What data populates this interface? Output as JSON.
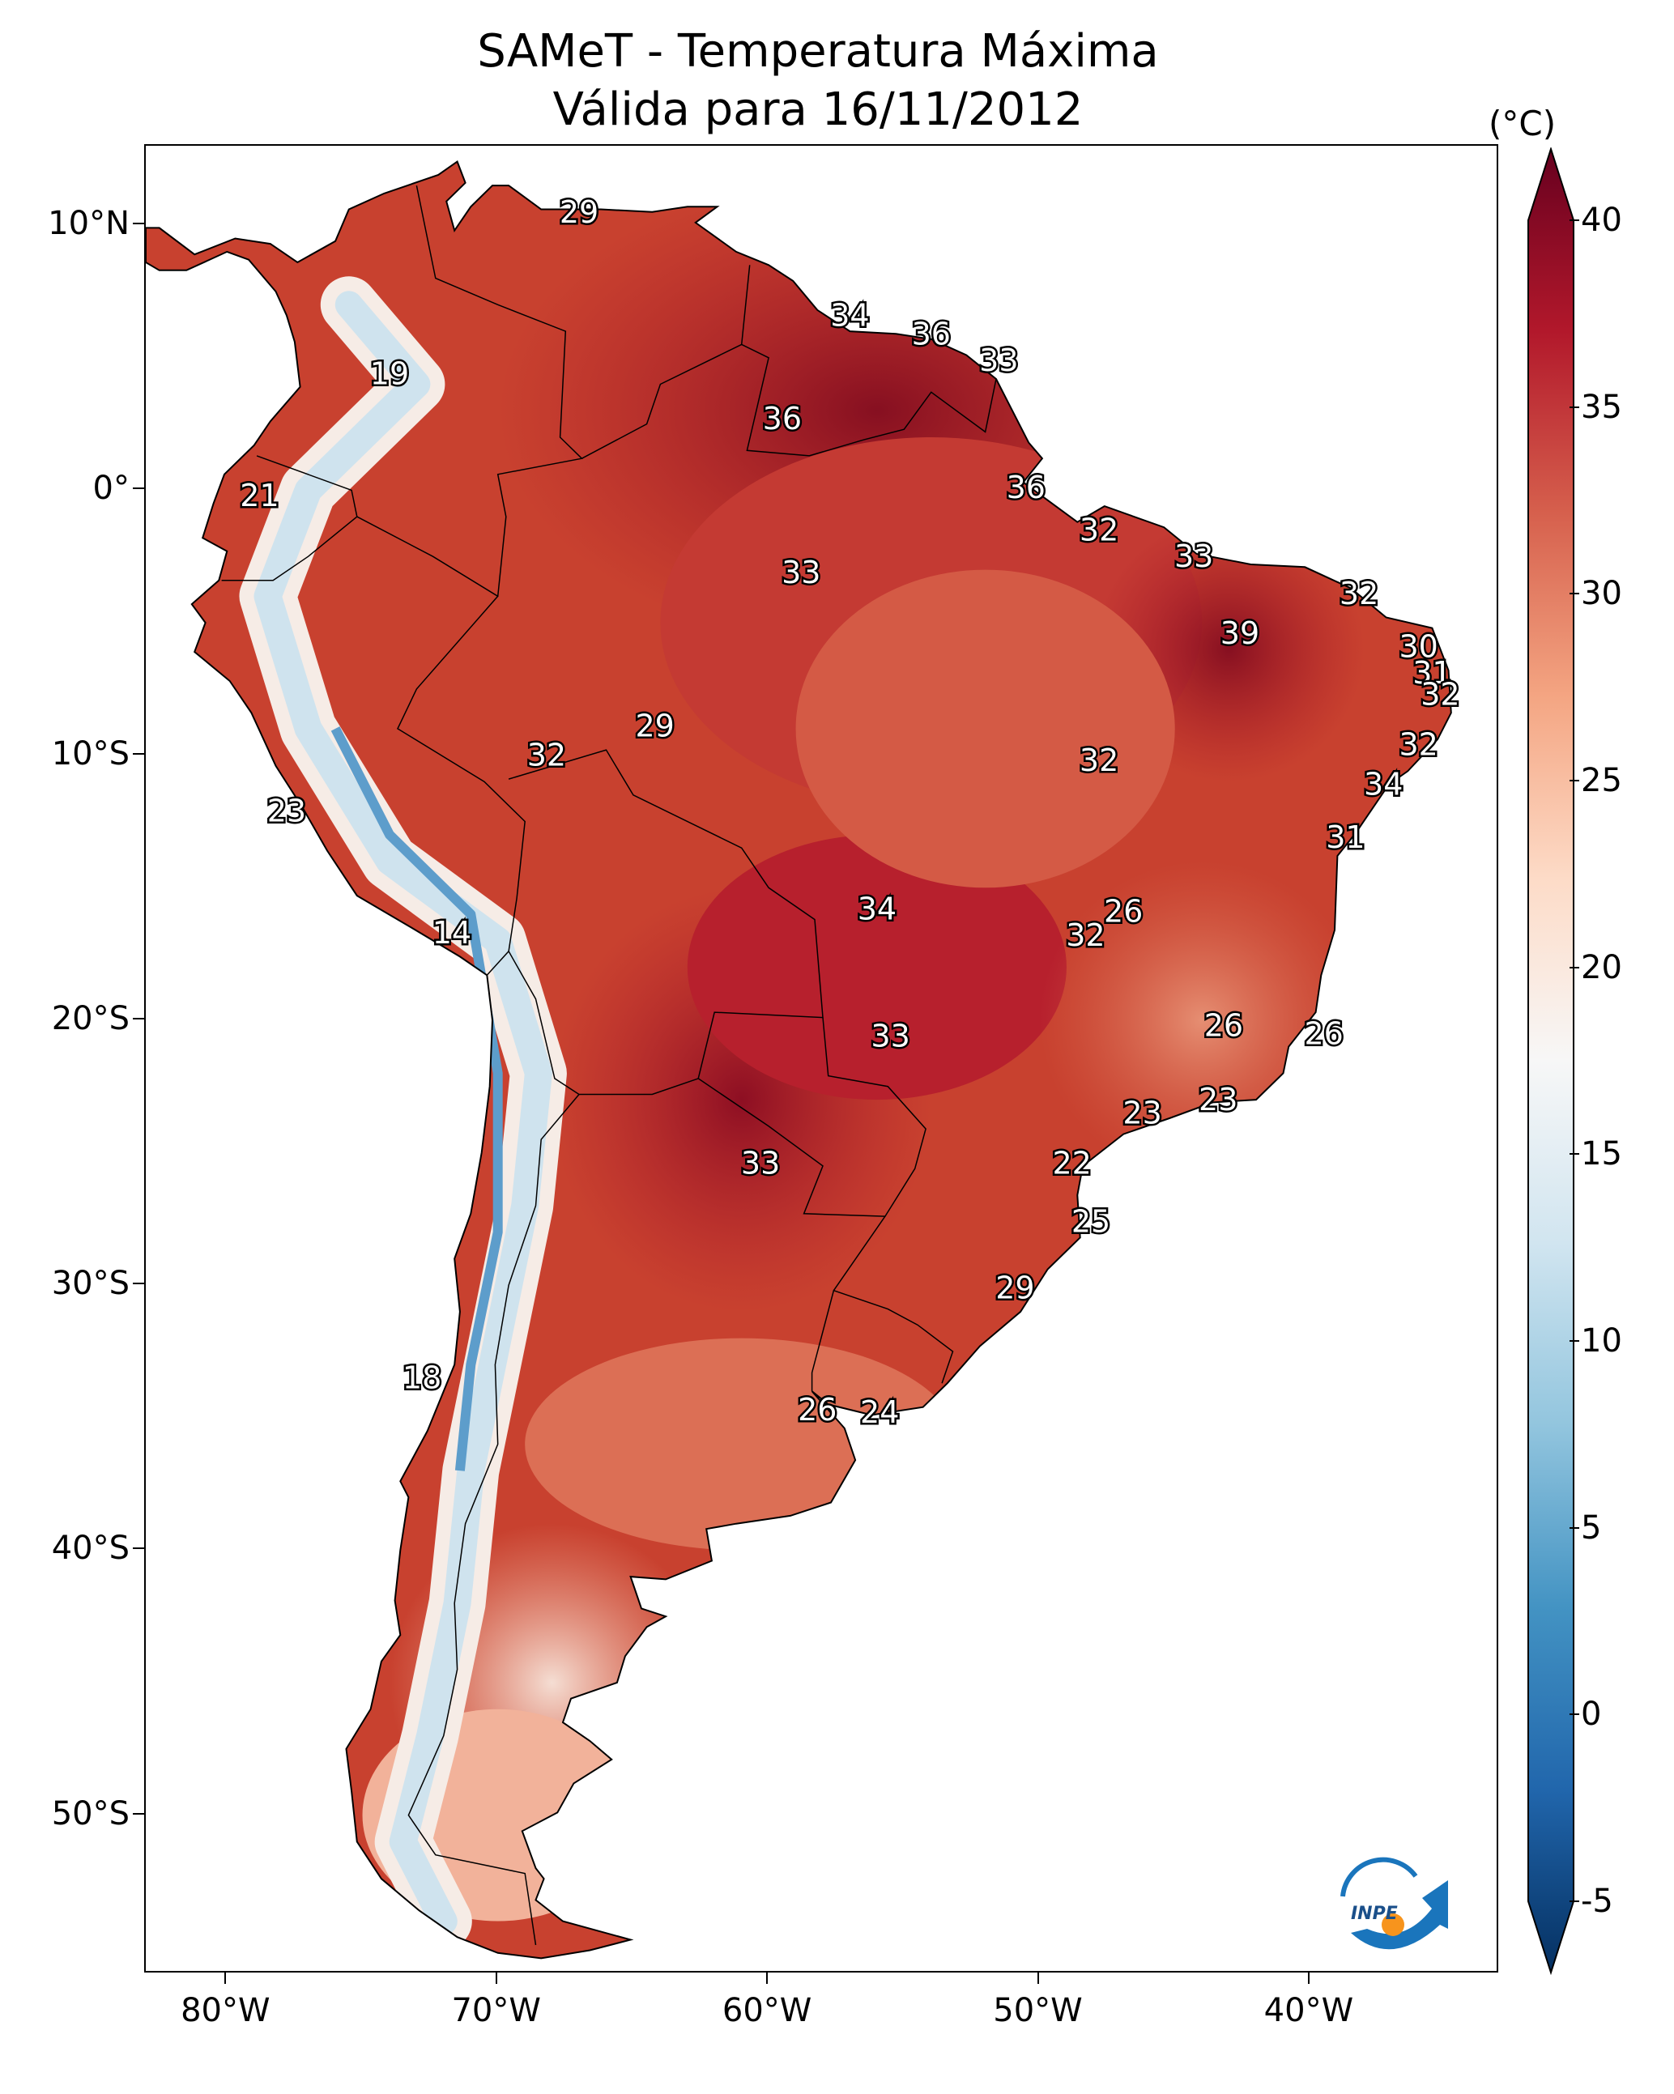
{
  "title": {
    "line1": "SAMeT - Temperatura Máxima",
    "line2": "Válida para 16/11/2012"
  },
  "map": {
    "type": "gridded temperature field",
    "region": "South America",
    "lon_range": [
      -83,
      -33
    ],
    "lat_range": [
      -56,
      13
    ],
    "colormap": "RdBu_r",
    "lat_ticks": [
      {
        "lat": 10,
        "label": "10°N"
      },
      {
        "lat": 0,
        "label": "0°"
      },
      {
        "lat": -10,
        "label": "10°S"
      },
      {
        "lat": -20,
        "label": "20°S"
      },
      {
        "lat": -30,
        "label": "30°S"
      },
      {
        "lat": -40,
        "label": "40°S"
      },
      {
        "lat": -50,
        "label": "50°S"
      }
    ],
    "lon_ticks": [
      {
        "lon": -80,
        "label": "80°W"
      },
      {
        "lon": -70,
        "label": "70°W"
      },
      {
        "lon": -60,
        "label": "60°W"
      },
      {
        "lon": -50,
        "label": "50°W"
      },
      {
        "lon": -40,
        "label": "40°W"
      }
    ],
    "value_labels": [
      {
        "lon": -67,
        "lat": 10.5,
        "value": "29"
      },
      {
        "lon": -57,
        "lat": 6.6,
        "value": "34"
      },
      {
        "lon": -54,
        "lat": 5.9,
        "value": "36"
      },
      {
        "lon": -51.5,
        "lat": 4.9,
        "value": "33"
      },
      {
        "lon": -74,
        "lat": 4.4,
        "value": "19"
      },
      {
        "lon": -59.5,
        "lat": 2.7,
        "value": "36"
      },
      {
        "lon": -50.5,
        "lat": 0.1,
        "value": "36"
      },
      {
        "lon": -78.8,
        "lat": -0.2,
        "value": "21"
      },
      {
        "lon": -47.8,
        "lat": -1.5,
        "value": "32"
      },
      {
        "lon": -58.8,
        "lat": -3.1,
        "value": "33"
      },
      {
        "lon": -44.3,
        "lat": -2.5,
        "value": "33"
      },
      {
        "lon": -38.2,
        "lat": -3.9,
        "value": "32"
      },
      {
        "lon": -42.6,
        "lat": -5.4,
        "value": "39"
      },
      {
        "lon": -36,
        "lat": -5.9,
        "value": "30"
      },
      {
        "lon": -35.5,
        "lat": -6.9,
        "value": "31"
      },
      {
        "lon": -35.2,
        "lat": -7.7,
        "value": "32"
      },
      {
        "lon": -64.2,
        "lat": -8.9,
        "value": "29"
      },
      {
        "lon": -68.2,
        "lat": -10,
        "value": "32"
      },
      {
        "lon": -47.8,
        "lat": -10.2,
        "value": "32"
      },
      {
        "lon": -36,
        "lat": -9.6,
        "value": "32"
      },
      {
        "lon": -37.3,
        "lat": -11.1,
        "value": "34"
      },
      {
        "lon": -77.8,
        "lat": -12.1,
        "value": "23"
      },
      {
        "lon": -38.7,
        "lat": -13.1,
        "value": "31"
      },
      {
        "lon": -56,
        "lat": -15.8,
        "value": "34"
      },
      {
        "lon": -46.9,
        "lat": -15.9,
        "value": "26"
      },
      {
        "lon": -48.3,
        "lat": -16.8,
        "value": "32"
      },
      {
        "lon": -71.7,
        "lat": -16.7,
        "value": "14"
      },
      {
        "lon": -43.2,
        "lat": -20.2,
        "value": "26"
      },
      {
        "lon": -55.5,
        "lat": -20.6,
        "value": "33"
      },
      {
        "lon": -39.5,
        "lat": -20.5,
        "value": "26"
      },
      {
        "lon": -43.4,
        "lat": -23,
        "value": "23"
      },
      {
        "lon": -46.2,
        "lat": -23.5,
        "value": "23"
      },
      {
        "lon": -60.3,
        "lat": -25.4,
        "value": "33"
      },
      {
        "lon": -48.8,
        "lat": -25.4,
        "value": "22"
      },
      {
        "lon": -48.1,
        "lat": -27.6,
        "value": "25"
      },
      {
        "lon": -50.9,
        "lat": -30.1,
        "value": "29"
      },
      {
        "lon": -72.8,
        "lat": -33.5,
        "value": "18"
      },
      {
        "lon": -58.2,
        "lat": -34.7,
        "value": "26"
      },
      {
        "lon": -55.9,
        "lat": -34.8,
        "value": "24"
      }
    ]
  },
  "colorbar": {
    "unit_label": "(°C)",
    "min": -7,
    "max": 42,
    "extend": "both",
    "ticks": [
      "-5",
      "0",
      "5",
      "10",
      "15",
      "20",
      "25",
      "30",
      "35",
      "40"
    ],
    "stops": [
      "#053061",
      "#2166ac",
      "#4393c3",
      "#92c5de",
      "#d1e5f0",
      "#f7f7f7",
      "#fddbc7",
      "#f4a582",
      "#d6604d",
      "#b2182b",
      "#67001f"
    ]
  },
  "logo": {
    "text": "INPE",
    "colors": [
      "#1a75bc",
      "#f7941d"
    ]
  }
}
